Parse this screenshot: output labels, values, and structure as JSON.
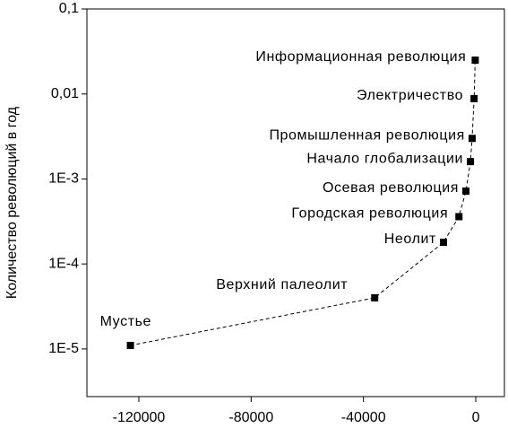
{
  "chart_data": {
    "type": "scatter",
    "y_label": "Количество революций в год",
    "x": [
      -123000,
      -36000,
      -11500,
      -6000,
      -3500,
      -1900,
      -1300,
      -600,
      -200
    ],
    "values": [
      1.1e-05,
      4e-05,
      0.00018,
      0.00036,
      0.00072,
      0.0016,
      0.003,
      0.0088,
      0.025
    ],
    "labels": [
      "Мустье",
      "Верхний палеолит",
      "Неолит",
      "Городская революция",
      "Осевая революция",
      "Начало глобализации",
      "Промышленная революция",
      "Электричество",
      "Информационная революция"
    ],
    "color": "#000000",
    "line_style": "dashed",
    "log_y": true,
    "xlim": [
      -138500,
      10200
    ],
    "ylim": [
      2.75e-06,
      0.1
    ],
    "xticks": [
      -120000,
      -80000,
      -40000,
      0
    ],
    "yticks": [
      {
        "value": 0.1,
        "label": "0,1"
      },
      {
        "value": 0.01,
        "label": "0,01"
      },
      {
        "value": 0.001,
        "label": "1E-3"
      },
      {
        "value": 0.0001,
        "label": "1E-4"
      },
      {
        "value": 1e-05,
        "label": "1E-5"
      }
    ]
  }
}
